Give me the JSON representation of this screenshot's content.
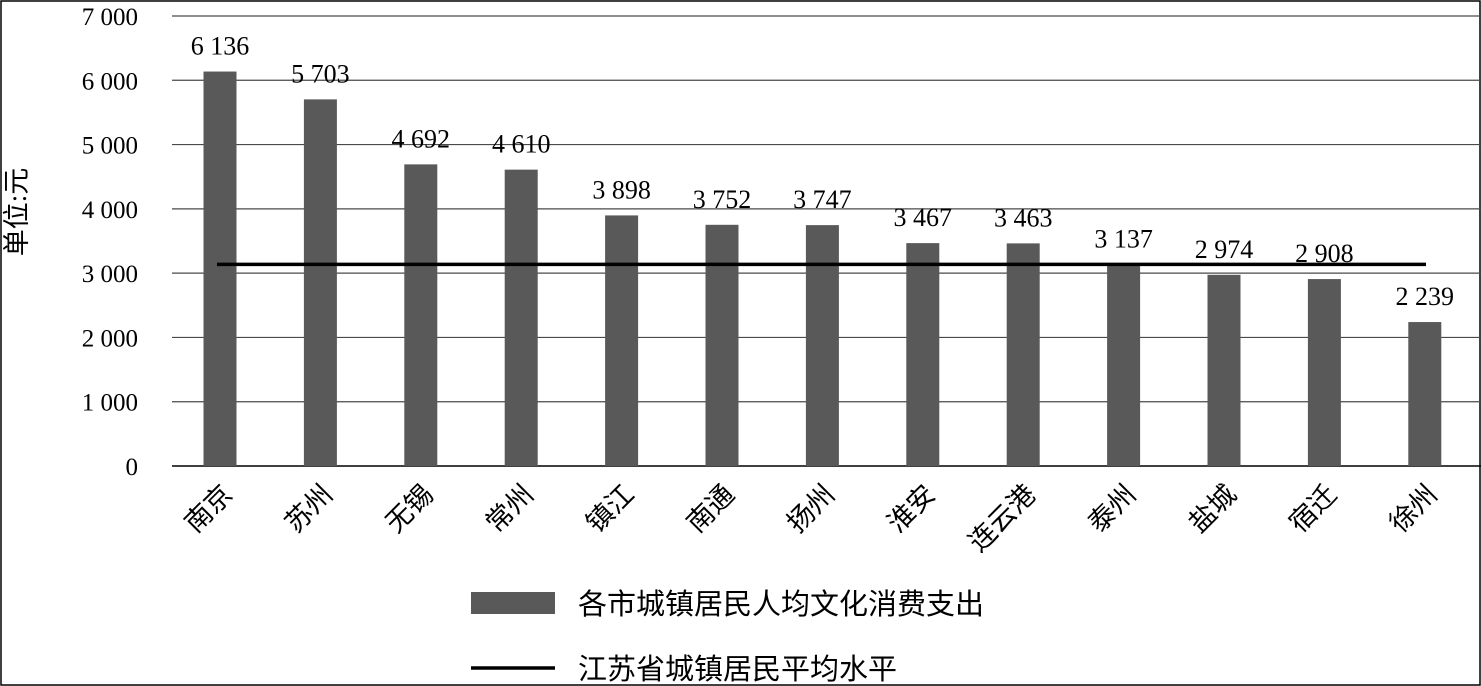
{
  "chart_data": {
    "type": "bar",
    "ylabel": "单位:元",
    "ylim": [
      0,
      7000
    ],
    "yticks": [
      0,
      1000,
      2000,
      3000,
      4000,
      5000,
      6000,
      7000
    ],
    "ytick_labels": [
      "0",
      "1 000",
      "2 000",
      "3 000",
      "4 000",
      "5 000",
      "6 000",
      "7 000"
    ],
    "grid": "horizontal",
    "legend_position": "bottom",
    "categories": [
      "南京",
      "苏州",
      "无锡",
      "常州",
      "镇江",
      "南通",
      "扬州",
      "淮安",
      "连云港",
      "泰州",
      "盐城",
      "宿迁",
      "徐州"
    ],
    "series": [
      {
        "name": "各市城镇居民人均文化消费支出",
        "type": "bar",
        "color": "#595959",
        "values": [
          6136,
          5703,
          4692,
          4610,
          3898,
          3752,
          3747,
          3467,
          3463,
          3137,
          2974,
          2908,
          2239
        ],
        "labels": [
          "6 136",
          "5 703",
          "4 692",
          "4 610",
          "3 898",
          "3 752",
          "3 747",
          "3 467",
          "3 463",
          "3 137",
          "2 974",
          "2 908",
          "2 239"
        ]
      },
      {
        "name": "江苏省城镇居民平均水平",
        "type": "line",
        "color": "#000000",
        "value": 3137
      }
    ]
  }
}
